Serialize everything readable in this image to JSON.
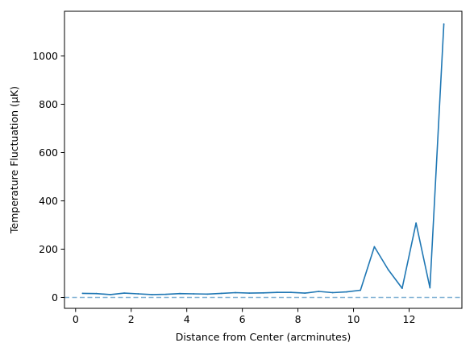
{
  "chart_data": {
    "type": "line",
    "title": "",
    "xlabel": "Distance from Center (arcminutes)",
    "ylabel": "Temperature Fluctuation (μK)",
    "xlim": [
      -0.4,
      13.9
    ],
    "ylim": [
      -45,
      1185
    ],
    "xticks": [
      0,
      2,
      4,
      6,
      8,
      10,
      12
    ],
    "yticks": [
      0,
      200,
      400,
      600,
      800,
      1000
    ],
    "grid": false,
    "legend": "none",
    "series": [
      {
        "color": "#1f77b4",
        "x": [
          0.25,
          0.75,
          1.25,
          1.75,
          2.25,
          2.75,
          3.25,
          3.75,
          4.25,
          4.75,
          5.25,
          5.75,
          6.25,
          6.75,
          7.25,
          7.75,
          8.25,
          8.75,
          9.25,
          9.75,
          10.25,
          10.75,
          11.25,
          11.75,
          12.25,
          12.75,
          13.25
        ],
        "y": [
          17,
          16,
          12,
          18,
          15,
          12,
          13,
          16,
          15,
          14,
          17,
          20,
          18,
          19,
          21,
          21,
          18,
          25,
          20,
          23,
          30,
          210,
          115,
          38,
          308,
          40,
          1132
        ]
      }
    ],
    "reference_line": {
      "y": 0,
      "color": "#1f77b4",
      "style": "dashed"
    }
  }
}
